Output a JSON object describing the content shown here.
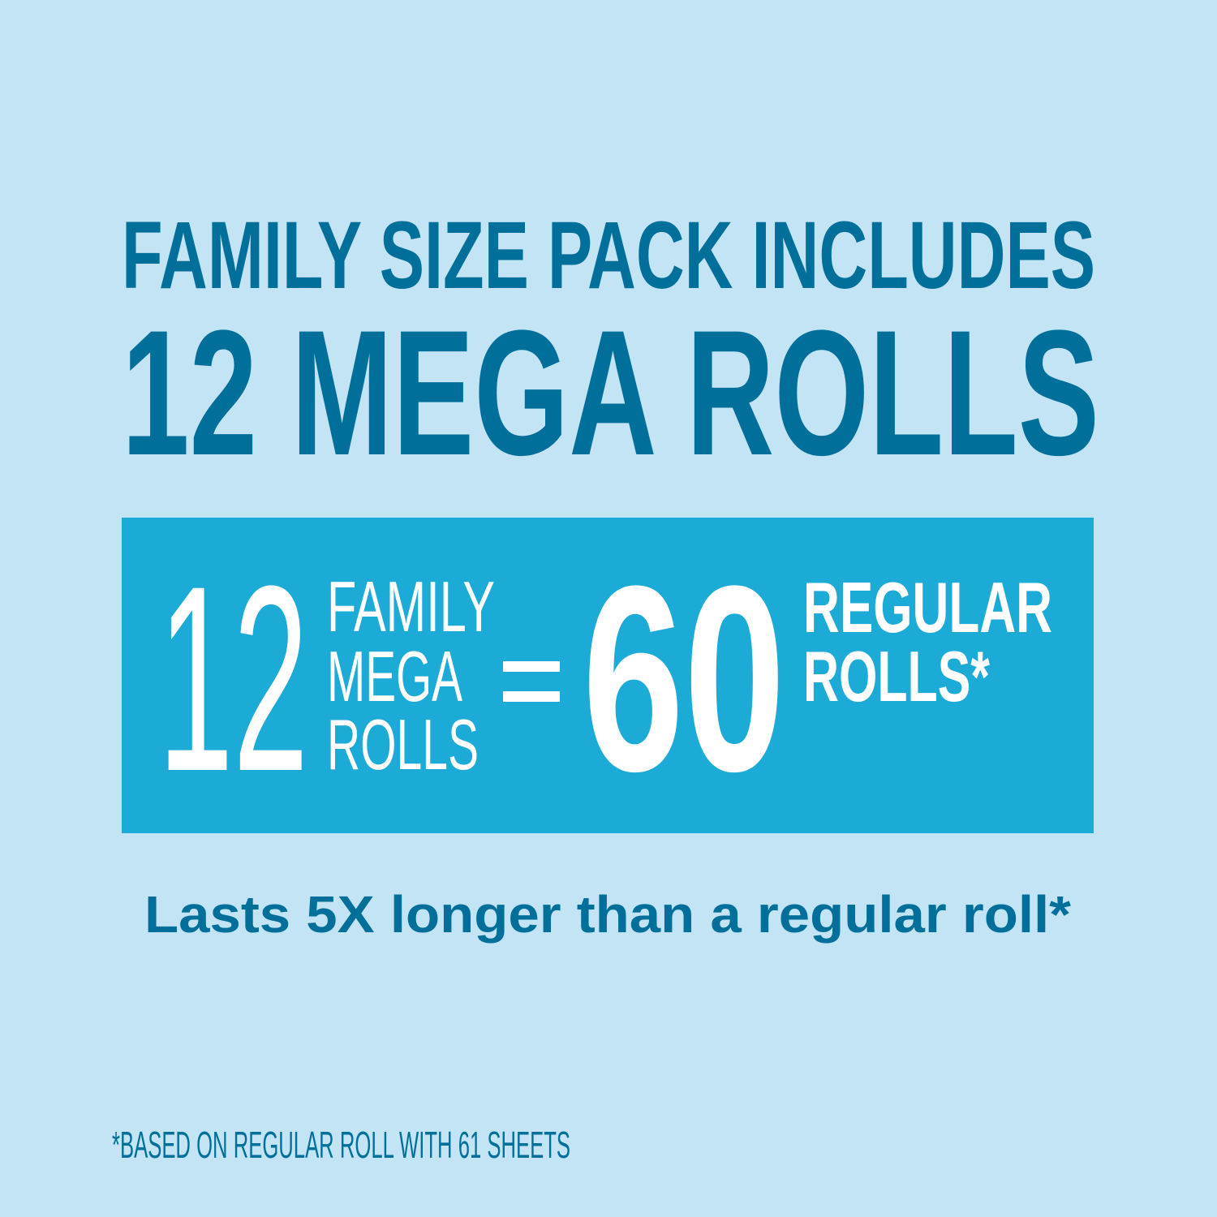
{
  "colors": {
    "background": "#c2e4f4",
    "heading": "#00709a",
    "box": "#1cabd6",
    "box_text": "#ffffff"
  },
  "heading": {
    "line1": "FAMILY SIZE PACK INCLUDES",
    "line2": "12 MEGA ROLLS"
  },
  "comparison": {
    "left_number": "12",
    "left_label": [
      "FAMILY",
      "MEGA",
      "ROLLS"
    ],
    "equals": "=",
    "right_number": "60",
    "right_label": [
      "REGULAR",
      "ROLLS*"
    ]
  },
  "tagline": "Lasts 5X longer than a regular roll*",
  "footnote": "*BASED ON REGULAR ROLL WITH 61 SHEETS"
}
